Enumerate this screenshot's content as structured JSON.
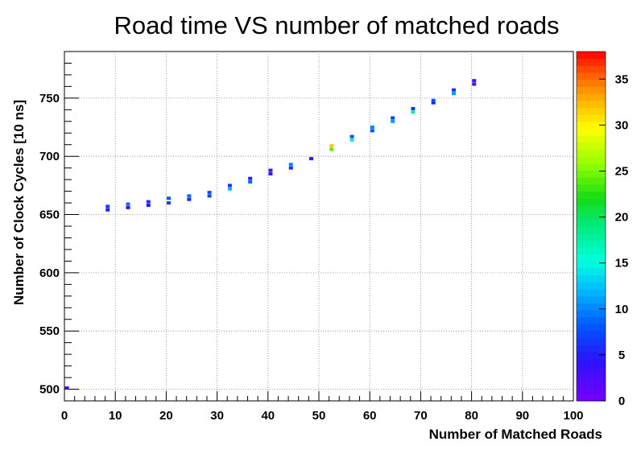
{
  "chart_data": {
    "type": "heatmap",
    "title": "Road time VS number of matched roads",
    "xlabel": "Number of Matched Roads",
    "ylabel": "Number of Clock Cycles [10 ns]",
    "xlim": [
      0,
      100
    ],
    "ylim": [
      490,
      790
    ],
    "grid": true,
    "x_ticks": [
      "0",
      "10",
      "20",
      "30",
      "40",
      "50",
      "60",
      "70",
      "80",
      "90",
      "100"
    ],
    "y_ticks": [
      "500",
      "550",
      "600",
      "650",
      "700",
      "750"
    ],
    "colorbar": {
      "range": [
        0,
        38
      ],
      "ticks": [
        "0",
        "5",
        "10",
        "15",
        "20",
        "25",
        "30",
        "35"
      ]
    },
    "points": [
      {
        "x": 0.5,
        "y": 501,
        "count": 4
      },
      {
        "x": 8.5,
        "y": 654,
        "count": 5
      },
      {
        "x": 8.5,
        "y": 657,
        "count": 7
      },
      {
        "x": 12.5,
        "y": 656,
        "count": 4
      },
      {
        "x": 12.5,
        "y": 659,
        "count": 9
      },
      {
        "x": 16.5,
        "y": 658,
        "count": 5
      },
      {
        "x": 16.5,
        "y": 661,
        "count": 6
      },
      {
        "x": 20.5,
        "y": 660,
        "count": 7
      },
      {
        "x": 20.5,
        "y": 664,
        "count": 8
      },
      {
        "x": 24.5,
        "y": 663,
        "count": 6
      },
      {
        "x": 24.5,
        "y": 666,
        "count": 9
      },
      {
        "x": 28.5,
        "y": 666,
        "count": 7
      },
      {
        "x": 28.5,
        "y": 669,
        "count": 8
      },
      {
        "x": 32.5,
        "y": 672,
        "count": 12
      },
      {
        "x": 32.5,
        "y": 675,
        "count": 6
      },
      {
        "x": 36.5,
        "y": 678,
        "count": 9
      },
      {
        "x": 36.5,
        "y": 681,
        "count": 4
      },
      {
        "x": 40.5,
        "y": 685,
        "count": 5
      },
      {
        "x": 40.5,
        "y": 688,
        "count": 3
      },
      {
        "x": 44.5,
        "y": 690,
        "count": 6
      },
      {
        "x": 44.5,
        "y": 693,
        "count": 10
      },
      {
        "x": 48.5,
        "y": 698,
        "count": 3
      },
      {
        "x": 52.5,
        "y": 706,
        "count": 24
      },
      {
        "x": 52.5,
        "y": 709,
        "count": 32
      },
      {
        "x": 56.5,
        "y": 714,
        "count": 14
      },
      {
        "x": 56.5,
        "y": 717,
        "count": 8
      },
      {
        "x": 60.5,
        "y": 722,
        "count": 8
      },
      {
        "x": 60.5,
        "y": 725,
        "count": 10
      },
      {
        "x": 64.5,
        "y": 730,
        "count": 11
      },
      {
        "x": 64.5,
        "y": 733,
        "count": 7
      },
      {
        "x": 68.5,
        "y": 738,
        "count": 18
      },
      {
        "x": 68.5,
        "y": 741,
        "count": 6
      },
      {
        "x": 72.5,
        "y": 746,
        "count": 5
      },
      {
        "x": 72.5,
        "y": 748,
        "count": 8
      },
      {
        "x": 76.5,
        "y": 754,
        "count": 11
      },
      {
        "x": 76.5,
        "y": 757,
        "count": 6
      },
      {
        "x": 80.5,
        "y": 762,
        "count": 4
      },
      {
        "x": 80.5,
        "y": 765,
        "count": 2
      }
    ]
  }
}
